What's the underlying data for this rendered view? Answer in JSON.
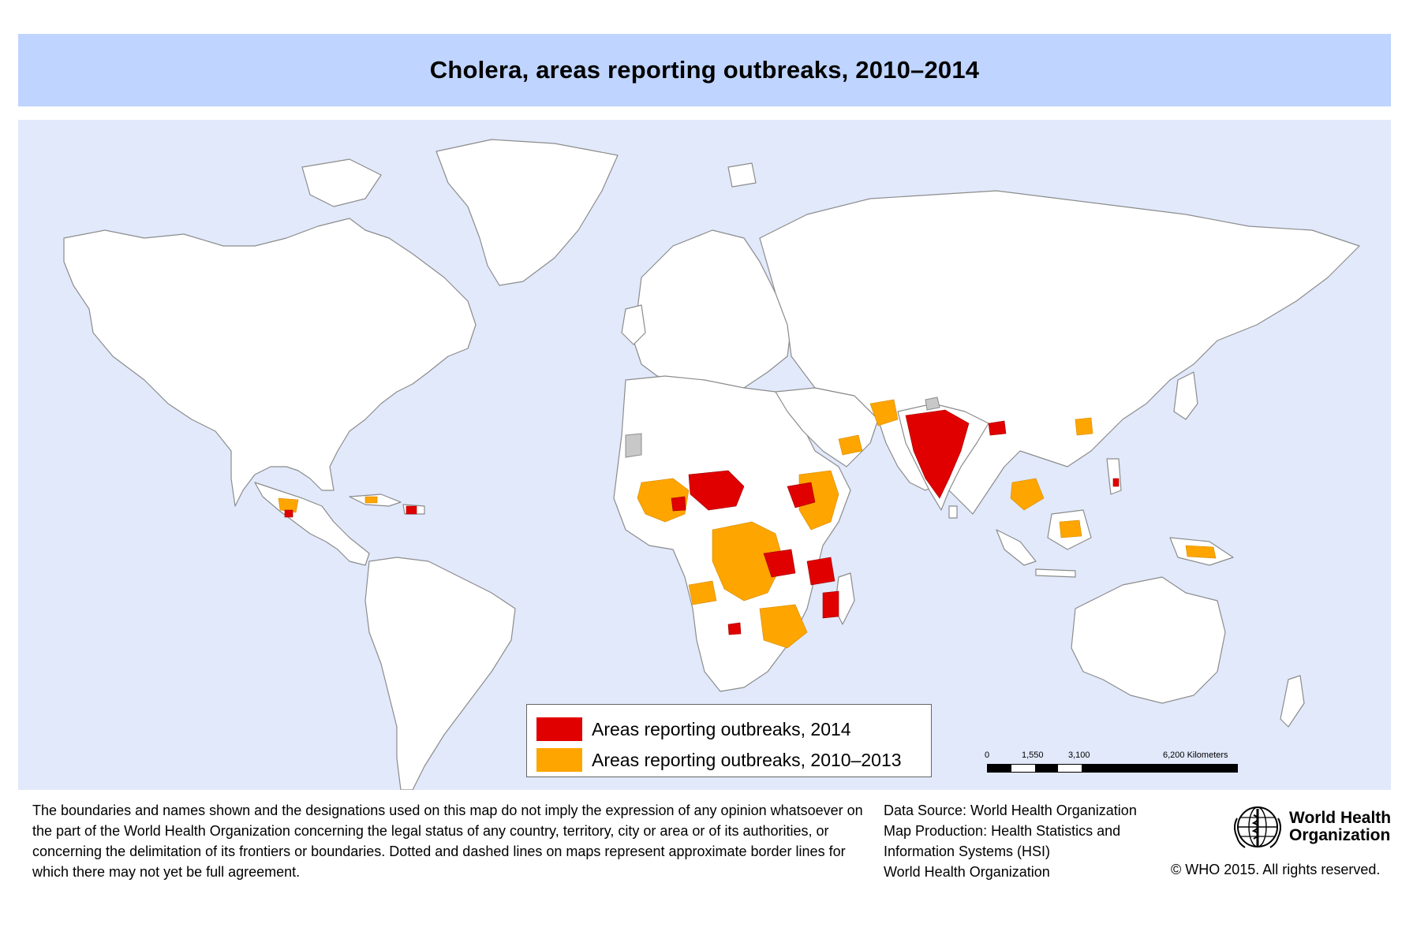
{
  "title": "Cholera, areas reporting outbreaks, 2010–2014",
  "colors": {
    "title_bar": "#bfd4ff",
    "ocean": "#e1e9fb",
    "land": "#ffffff",
    "border": "#8c8c8c",
    "outbreak_2014": "#e00000",
    "outbreak_2010_2013": "#ffa500",
    "no_data": "#c8c8c8"
  },
  "legend": {
    "items": [
      {
        "label": "Areas reporting outbreaks, 2014",
        "color": "#e00000"
      },
      {
        "label": "Areas reporting outbreaks, 2010–2013",
        "color": "#ffa500"
      }
    ]
  },
  "scale": {
    "labels": [
      "0",
      "1,550",
      "3,100",
      "6,200 Kilometers"
    ]
  },
  "disclaimer": "The boundaries and names shown and the designations used on this map do not imply the expression of any opinion whatsoever on the part of the World Health Organization concerning the legal status of any country, territory, city or area or of its authorities, or concerning the delimitation of its frontiers or boundaries. Dotted and dashed lines on maps represent approximate border lines for which there may not yet be full agreement.",
  "data_source": {
    "line1": "Data Source: World Health Organization",
    "line2": "Map Production: Health Statistics and",
    "line3": "Information Systems (HSI)",
    "line4": "World Health Organization"
  },
  "logo": {
    "line1": "World Health",
    "line2": "Organization",
    "icon": "who-emblem-icon"
  },
  "copyright": "© WHO 2015. All rights reserved."
}
